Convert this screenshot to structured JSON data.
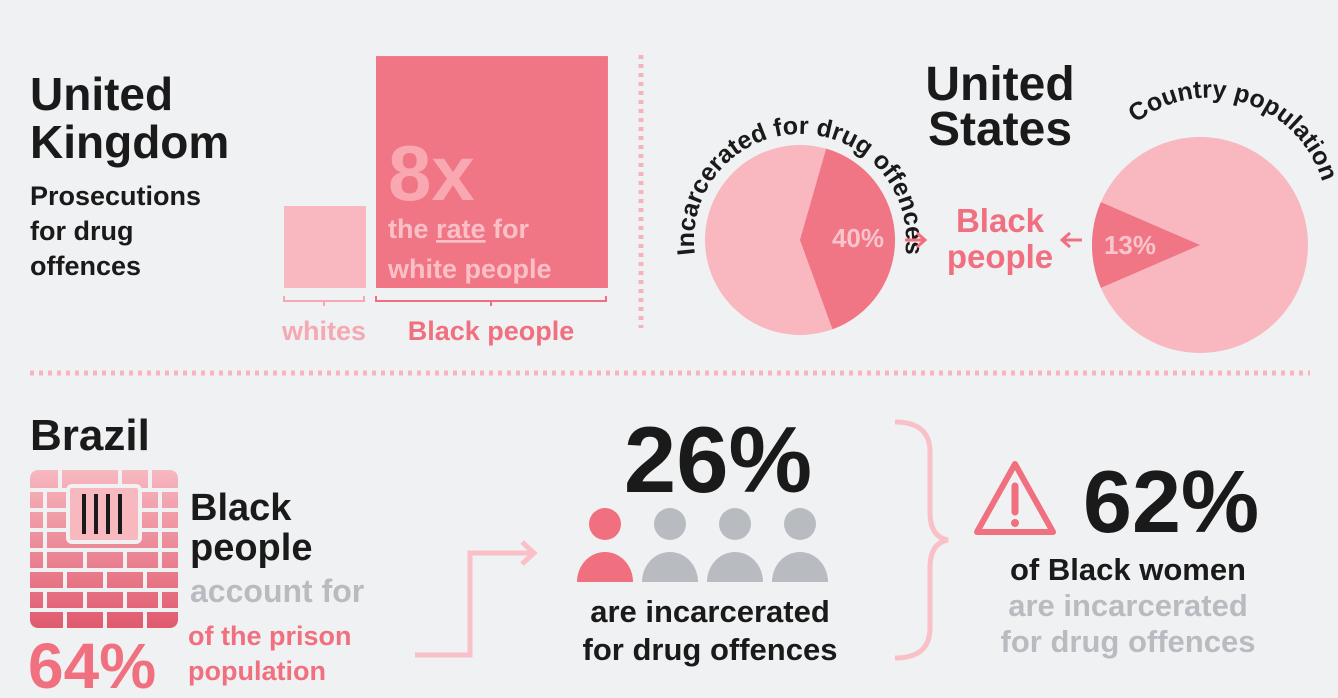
{
  "uk": {
    "title_lines": [
      "United",
      "Kingdom"
    ],
    "subtitle_lines": [
      "Prosecutions",
      "for drug",
      "offences"
    ],
    "ratio": 8,
    "ratio_label": "8x",
    "caption_line1": [
      "the ",
      "rate",
      " for"
    ],
    "caption_line2": "white people",
    "labels": [
      "whites",
      "Black people"
    ]
  },
  "us": {
    "title_lines": [
      "United",
      "States"
    ],
    "center_lines": [
      "Black",
      "people"
    ],
    "pies": [
      {
        "title": "Incarcerated for drug offences",
        "value": 40,
        "value_label": "40%"
      },
      {
        "title": "Country population",
        "value": 13,
        "value_label": "13%"
      }
    ]
  },
  "brazil": {
    "title": "Brazil",
    "lines": [
      "Black",
      "people",
      "account for"
    ],
    "share": "64%",
    "share_lines": [
      "of the prison",
      "population"
    ],
    "drug_share": "26%",
    "drug_lines": [
      "are incarcerated",
      "for drug offences"
    ],
    "women_share": "62%",
    "women_lines": [
      "of Black women",
      "are incarcerated",
      "for drug offences"
    ]
  }
}
